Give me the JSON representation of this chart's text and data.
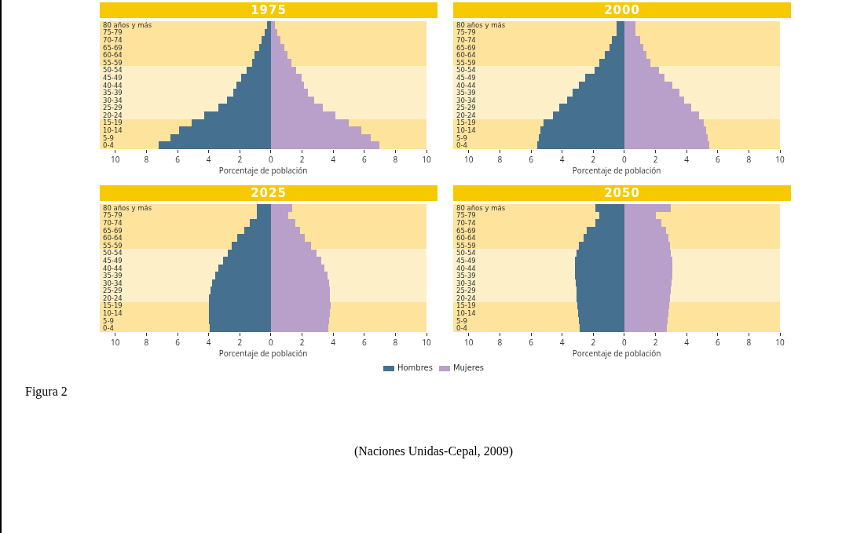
{
  "chart_data": [
    {
      "type": "bar",
      "orientation": "horizontal",
      "stacked": true,
      "title": "1975",
      "xlabel": "Porcentaje de población",
      "categories": [
        "80 años y más",
        "75-79",
        "70-74",
        "65-69",
        "60-64",
        "55-59",
        "50-54",
        "45-49",
        "40-44",
        "35-39",
        "30-34",
        "25-29",
        "20-24",
        "15-19",
        "10-14",
        "5-9",
        "0-4"
      ],
      "series": [
        {
          "color": "#46708f",
          "values": [
            -0.25,
            -0.4,
            -0.6,
            -0.75,
            -1.05,
            -1.2,
            -1.55,
            -1.9,
            -2.2,
            -2.4,
            -2.8,
            -3.4,
            -4.3,
            -5.1,
            -5.9,
            -6.45,
            -7.2
          ]
        },
        {
          "color": "#b9a0cb",
          "values": [
            0.25,
            0.4,
            0.6,
            0.85,
            1.05,
            1.3,
            1.6,
            1.95,
            2.1,
            2.4,
            2.8,
            3.35,
            4.15,
            5.0,
            5.8,
            6.4,
            6.95
          ]
        }
      ],
      "xlim": [
        -11,
        10
      ],
      "xticks": [
        {
          "value": -10,
          "label": "10"
        },
        {
          "value": -8,
          "label": "8"
        },
        {
          "value": -6,
          "label": "6"
        },
        {
          "value": -4,
          "label": "4"
        },
        {
          "value": -2,
          "label": "2"
        },
        0,
        2,
        4,
        6,
        8,
        10
      ],
      "bands": [
        {
          "axis": "y",
          "from": "80 años y más",
          "to": "55-59",
          "color": "#fde39b"
        },
        {
          "axis": "y",
          "from": "50-54",
          "to": "20-24",
          "color": "#fdf0c8"
        },
        {
          "axis": "y",
          "from": "15-19",
          "to": "0-4",
          "color": "#fde39b"
        }
      ],
      "grid": false
    },
    {
      "type": "bar",
      "orientation": "horizontal",
      "stacked": true,
      "title": "2000",
      "xlabel": "Porcentaje de población",
      "categories": [
        "80 años y más",
        "75-79",
        "70-74",
        "65-69",
        "60-64",
        "55-59",
        "50-54",
        "45-49",
        "40-44",
        "35-39",
        "30-34",
        "25-29",
        "20-24",
        "15-19",
        "10-14",
        "5-9",
        "0-4"
      ],
      "series": [
        {
          "color": "#46708f",
          "values": [
            -0.5,
            -0.5,
            -0.8,
            -0.95,
            -1.25,
            -1.6,
            -1.9,
            -2.5,
            -2.9,
            -3.35,
            -3.7,
            -4.2,
            -4.6,
            -5.2,
            -5.4,
            -5.5,
            -5.6
          ]
        },
        {
          "color": "#b9a0cb",
          "values": [
            0.7,
            0.7,
            1.0,
            1.2,
            1.4,
            1.65,
            2.25,
            2.6,
            3.1,
            3.55,
            3.85,
            4.3,
            4.8,
            5.1,
            5.25,
            5.35,
            5.45
          ]
        }
      ],
      "xlim": [
        -11,
        10
      ],
      "xticks": [
        {
          "value": -10,
          "label": "10"
        },
        {
          "value": -8,
          "label": "8"
        },
        {
          "value": -6,
          "label": "6"
        },
        {
          "value": -4,
          "label": "4"
        },
        {
          "value": -2,
          "label": "2"
        },
        0,
        2,
        4,
        6,
        8,
        10
      ],
      "bands": [
        {
          "axis": "y",
          "from": "80 años y más",
          "to": "55-59",
          "color": "#fde39b"
        },
        {
          "axis": "y",
          "from": "50-54",
          "to": "20-24",
          "color": "#fdf0c8"
        },
        {
          "axis": "y",
          "from": "15-19",
          "to": "0-4",
          "color": "#fde39b"
        }
      ],
      "grid": false
    },
    {
      "type": "bar",
      "orientation": "horizontal",
      "stacked": true,
      "title": "2025",
      "xlabel": "Porcentaje de población",
      "categories": [
        "80 años y más",
        "75-79",
        "70-74",
        "65-69",
        "60-64",
        "55-59",
        "50-54",
        "45-49",
        "40-44",
        "35-39",
        "30-34",
        "25-29",
        "20-24",
        "15-19",
        "10-14",
        "5-9",
        "0-4"
      ],
      "series": [
        {
          "name": "Hombres",
          "color": "#46708f",
          "values": [
            -0.9,
            -0.9,
            -1.35,
            -1.7,
            -2.15,
            -2.5,
            -2.75,
            -3.1,
            -3.4,
            -3.6,
            -3.8,
            -3.9,
            -4.0,
            -4.0,
            -4.0,
            -4.0,
            -3.95
          ]
        },
        {
          "name": "Mujeres",
          "color": "#b9a0cb",
          "values": [
            1.35,
            1.1,
            1.55,
            1.85,
            2.2,
            2.6,
            2.95,
            3.25,
            3.45,
            3.65,
            3.75,
            3.8,
            3.8,
            3.85,
            3.8,
            3.75,
            3.7
          ]
        }
      ],
      "xlim": [
        -11,
        10
      ],
      "xticks": [
        {
          "value": -10,
          "label": "10"
        },
        {
          "value": -8,
          "label": "8"
        },
        {
          "value": -6,
          "label": "6"
        },
        {
          "value": -4,
          "label": "4"
        },
        {
          "value": -2,
          "label": "2"
        },
        0,
        2,
        4,
        6,
        8,
        10
      ],
      "bands": [
        {
          "axis": "y",
          "from": "80 años y más",
          "to": "55-59",
          "color": "#fde39b"
        },
        {
          "axis": "y",
          "from": "50-54",
          "to": "20-24",
          "color": "#fdf0c8"
        },
        {
          "axis": "y",
          "from": "15-19",
          "to": "0-4",
          "color": "#fde39b"
        }
      ],
      "grid": false,
      "legend": "bottom"
    },
    {
      "type": "bar",
      "orientation": "horizontal",
      "stacked": true,
      "title": "2050",
      "xlabel": "Porcentaje de población",
      "categories": [
        "80 años y más",
        "75-79",
        "70-74",
        "65-69",
        "60-64",
        "55-59",
        "50-54",
        "45-49",
        "40-44",
        "35-39",
        "30-34",
        "25-29",
        "20-24",
        "15-19",
        "10-14",
        "5-9",
        "0-4"
      ],
      "series": [
        {
          "color": "#46708f",
          "values": [
            -1.85,
            -1.6,
            -1.85,
            -2.4,
            -2.6,
            -2.9,
            -3.05,
            -3.2,
            -3.2,
            -3.2,
            -3.15,
            -3.1,
            -3.05,
            -3.0,
            -2.95,
            -2.9,
            -2.85
          ]
        },
        {
          "color": "#b9a0cb",
          "values": [
            3.0,
            2.0,
            2.4,
            2.7,
            2.85,
            2.95,
            3.0,
            3.1,
            3.1,
            3.1,
            3.05,
            3.0,
            2.95,
            2.9,
            2.85,
            2.8,
            2.75
          ]
        }
      ],
      "xlim": [
        -11,
        10
      ],
      "xticks": [
        {
          "value": -10,
          "label": "10"
        },
        {
          "value": -8,
          "label": "8"
        },
        {
          "value": -6,
          "label": "6"
        },
        {
          "value": -4,
          "label": "4"
        },
        {
          "value": -2,
          "label": "2"
        },
        0,
        2,
        4,
        6,
        8,
        10
      ],
      "bands": [
        {
          "axis": "y",
          "from": "80 años y más",
          "to": "55-59",
          "color": "#fde39b"
        },
        {
          "axis": "y",
          "from": "50-54",
          "to": "20-24",
          "color": "#fdf0c8"
        },
        {
          "axis": "y",
          "from": "15-19",
          "to": "0-4",
          "color": "#fde39b"
        }
      ],
      "grid": false,
      "annotations": [
        "Figura 2",
        "(Naciones Unidas-Cepal, 2009)"
      ]
    }
  ]
}
